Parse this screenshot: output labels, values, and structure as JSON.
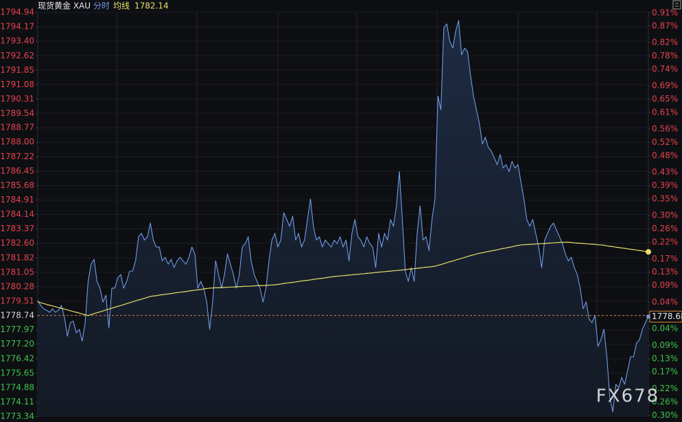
{
  "chart_data": {
    "type": "line",
    "title": "现货黄金 XAU",
    "watermark": "FX678",
    "grid": true,
    "ylim": [
      1773.34,
      1794.94
    ],
    "yticks": [
      1794.94,
      1794.17,
      {
        "value": 1793.4,
        "label": "1793.40"
      },
      1792.62,
      1791.85,
      1791.08,
      1790.31,
      1789.54,
      1788.77,
      {
        "value": 1788,
        "label": "1788.00"
      },
      1787.22,
      1786.45,
      1785.68,
      1784.91,
      1784.14,
      1783.37,
      {
        "value": 1782.6,
        "label": "1782.60"
      },
      1781.82,
      1781.05,
      1780.28,
      1779.51,
      1778.74,
      1777.97,
      {
        "value": 1777.2,
        "label": "1777.20"
      },
      1776.42,
      1775.65,
      1774.88,
      1774.11,
      1773.34
    ],
    "y2lim": [
      -0.3036,
      0.9108
    ],
    "y2ticks": [
      {
        "value": 0.91,
        "label": "0.91%"
      },
      {
        "value": 0.87,
        "label": "0.87%"
      },
      {
        "value": 0.82,
        "label": "0.82%"
      },
      {
        "value": 0.78,
        "label": "0.78%"
      },
      {
        "value": 0.74,
        "label": "0.74%"
      },
      {
        "value": 0.69,
        "label": "0.69%"
      },
      {
        "value": 0.65,
        "label": "0.65%"
      },
      {
        "value": 0.61,
        "label": "0.61%"
      },
      {
        "value": 0.56,
        "label": "0.56%"
      },
      {
        "value": 0.52,
        "label": "0.52%"
      },
      {
        "value": 0.48,
        "label": "0.48%"
      },
      {
        "value": 0.43,
        "label": "0.43%"
      },
      {
        "value": 0.39,
        "label": "0.39%"
      },
      {
        "value": 0.35,
        "label": "0.35%"
      },
      {
        "value": 0.3,
        "label": "0.30%"
      },
      {
        "value": 0.26,
        "label": "0.26%"
      },
      {
        "value": 0.22,
        "label": "0.22%"
      },
      {
        "value": 0.17,
        "label": "0.17%"
      },
      {
        "value": 0.13,
        "label": "0.13%"
      },
      {
        "value": 0.09,
        "label": "0.09%"
      },
      {
        "value": 0.04,
        "label": "0.04%"
      },
      {
        "value": 0,
        "label": "0.00%"
      },
      {
        "value": -0.04,
        "label": "0.04%"
      },
      {
        "value": -0.09,
        "label": "0.09%"
      },
      {
        "value": -0.13,
        "label": "0.13%"
      },
      {
        "value": -0.17,
        "label": "0.17%"
      },
      {
        "value": -0.22,
        "label": "0.22%"
      },
      {
        "value": -0.26,
        "label": "0.26%"
      },
      {
        "value": -0.3,
        "label": "0.30%"
      }
    ],
    "up_color": "#e5434b",
    "down_color": "#3fc54b",
    "flat_color": "#d8d8d8",
    "reference_color": "#d9883a",
    "series": [
      {
        "name": "分时",
        "color": "#6f9de8",
        "values": [
          1779.54,
          1779.28,
          1779.1,
          1779.02,
          1778.91,
          1779.1,
          1778.91,
          1779.02,
          1779.28,
          1778.66,
          1777.63,
          1778.36,
          1778.44,
          1777.81,
          1778.0,
          1777.37,
          1778.36,
          1780.56,
          1781.48,
          1781.74,
          1780.56,
          1780.2,
          1779.46,
          1779.83,
          1778.07,
          1780.2,
          1780.2,
          1780.75,
          1780.93,
          1780.2,
          1780.56,
          1781.11,
          1781.11,
          1781.66,
          1782.95,
          1783.13,
          1782.77,
          1782.95,
          1783.68,
          1782.77,
          1782.4,
          1782.4,
          1781.66,
          1781.85,
          1781.48,
          1781.74,
          1781.3,
          1781.66,
          1781.85,
          1781.66,
          1781.48,
          1781.85,
          1782.4,
          1782.03,
          1780.2,
          1780.56,
          1780.2,
          1779.46,
          1778.0,
          1779.46,
          1781.66,
          1780.93,
          1780.2,
          1780.93,
          1782.03,
          1781.48,
          1780.93,
          1780.2,
          1780.93,
          1782.4,
          1782.58,
          1782.95,
          1781.66,
          1780.93,
          1780.56,
          1780.2,
          1779.46,
          1780.2,
          1781.66,
          1782.77,
          1783.13,
          1782.4,
          1782.77,
          1784.23,
          1783.87,
          1783.5,
          1784.05,
          1782.77,
          1783.13,
          1782.4,
          1782.77,
          1783.87,
          1784.97,
          1783.5,
          1782.77,
          1782.95,
          1782.4,
          1782.77,
          1782.58,
          1782.4,
          1782.77,
          1782.58,
          1782.95,
          1782.4,
          1782.77,
          1781.66,
          1783.13,
          1783.87,
          1782.95,
          1782.77,
          1782.4,
          1782.95,
          1782.58,
          1782.4,
          1781.3,
          1783.13,
          1782.4,
          1783.13,
          1782.77,
          1783.87,
          1783.5,
          1784.6,
          1786.43,
          1783.87,
          1781.11,
          1780.56,
          1781.3,
          1780.56,
          1783.13,
          1784.6,
          1782.77,
          1782.95,
          1782.21,
          1783.87,
          1784.97,
          1790.47,
          1789.73,
          1794.13,
          1794.32,
          1793.4,
          1793.03,
          1793.95,
          1794.5,
          1792.67,
          1793.03,
          1792.85,
          1791.57,
          1790.47,
          1789.73,
          1789.0,
          1787.9,
          1788.27,
          1787.72,
          1787.53,
          1787.17,
          1786.8,
          1787.35,
          1786.62,
          1786.8,
          1786.43,
          1786.98,
          1786.62,
          1786.8,
          1785.88,
          1784.97,
          1783.87,
          1783.5,
          1783.87,
          1783.13,
          1782.4,
          1781.3,
          1782.77,
          1783.13,
          1783.5,
          1783.68,
          1783.31,
          1782.95,
          1782.58,
          1782.03,
          1781.66,
          1781.85,
          1781.3,
          1780.93,
          1780.2,
          1779.1,
          1779.46,
          1778.55,
          1778.36,
          1778.73,
          1777.08,
          1777.45,
          1778.0,
          1776.53,
          1774.33,
          1773.6,
          1775.06,
          1774.88,
          1775.43,
          1775.06,
          1775.8,
          1776.53,
          1776.53,
          1777.26,
          1777.45,
          1778.0,
          1778.36,
          1778.68
        ]
      },
      {
        "name": "均线",
        "color": "#e8e06a",
        "values": [
          1779.46,
          1779.42,
          1779.38,
          1779.33,
          1779.29,
          1779.25,
          1779.21,
          1779.16,
          1779.12,
          1779.08,
          1779.04,
          1778.99,
          1778.95,
          1778.91,
          1778.87,
          1778.82,
          1778.78,
          1778.74,
          1778.79,
          1778.84,
          1778.89,
          1778.93,
          1778.98,
          1779.03,
          1779.08,
          1779.13,
          1779.18,
          1779.23,
          1779.27,
          1779.32,
          1779.37,
          1779.42,
          1779.47,
          1779.52,
          1779.57,
          1779.61,
          1779.66,
          1779.71,
          1779.76,
          1779.78,
          1779.8,
          1779.83,
          1779.85,
          1779.87,
          1779.89,
          1779.91,
          1779.94,
          1779.96,
          1779.98,
          1780.0,
          1780.02,
          1780.05,
          1780.07,
          1780.09,
          1780.11,
          1780.13,
          1780.16,
          1780.18,
          1780.2,
          1780.21,
          1780.22,
          1780.22,
          1780.23,
          1780.24,
          1780.25,
          1780.26,
          1780.26,
          1780.27,
          1780.28,
          1780.29,
          1780.3,
          1780.3,
          1780.31,
          1780.32,
          1780.33,
          1780.34,
          1780.34,
          1780.35,
          1780.36,
          1780.37,
          1780.38,
          1780.4,
          1780.42,
          1780.45,
          1780.47,
          1780.49,
          1780.51,
          1780.53,
          1780.56,
          1780.58,
          1780.6,
          1780.62,
          1780.64,
          1780.67,
          1780.69,
          1780.71,
          1780.73,
          1780.75,
          1780.78,
          1780.8,
          1780.82,
          1780.84,
          1780.85,
          1780.87,
          1780.88,
          1780.9,
          1780.91,
          1780.93,
          1780.94,
          1780.96,
          1780.97,
          1780.99,
          1781.0,
          1781.02,
          1781.04,
          1781.05,
          1781.07,
          1781.08,
          1781.1,
          1781.11,
          1781.13,
          1781.14,
          1781.16,
          1781.17,
          1781.19,
          1781.21,
          1781.23,
          1781.24,
          1781.26,
          1781.28,
          1781.3,
          1781.32,
          1781.33,
          1781.35,
          1781.37,
          1781.42,
          1781.46,
          1781.51,
          1781.56,
          1781.61,
          1781.65,
          1781.7,
          1781.75,
          1781.79,
          1781.84,
          1781.89,
          1781.94,
          1781.98,
          1782.03,
          1782.06,
          1782.09,
          1782.13,
          1782.16,
          1782.19,
          1782.22,
          1782.25,
          1782.29,
          1782.32,
          1782.35,
          1782.38,
          1782.41,
          1782.45,
          1782.48,
          1782.51,
          1782.52,
          1782.53,
          1782.54,
          1782.55,
          1782.56,
          1782.57,
          1782.58,
          1782.59,
          1782.6,
          1782.61,
          1782.62,
          1782.63,
          1782.64,
          1782.65,
          1782.66,
          1782.65,
          1782.64,
          1782.62,
          1782.61,
          1782.6,
          1782.59,
          1782.57,
          1782.56,
          1782.55,
          1782.54,
          1782.52,
          1782.51,
          1782.49,
          1782.46,
          1782.44,
          1782.42,
          1782.39,
          1782.37,
          1782.35,
          1782.33,
          1782.3,
          1782.28,
          1782.26,
          1782.23,
          1782.21,
          1782.19,
          1782.16,
          1782.14
        ]
      }
    ]
  }
}
